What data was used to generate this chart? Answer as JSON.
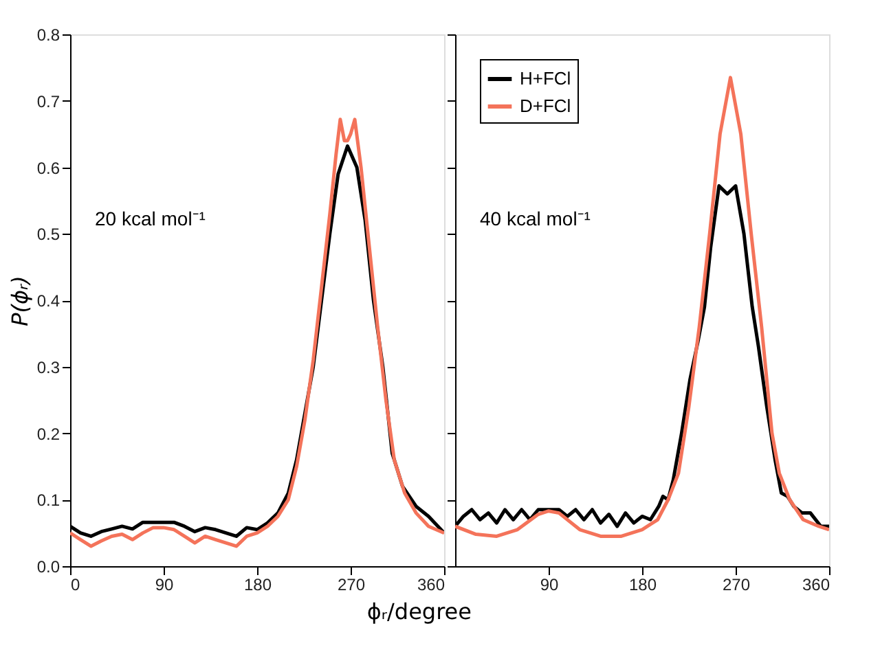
{
  "chart_data": [
    {
      "type": "line",
      "xlabel": "ϕᵣ/degree",
      "ylabel": "P(ϕᵣ)",
      "annotations": [
        "20 kcal mol⁻¹"
      ],
      "xlim": [
        0,
        360
      ],
      "xticks": [
        0,
        90,
        180,
        270,
        360
      ],
      "ylim": [
        0,
        0.8
      ],
      "yticks": [
        {
          "value": 0,
          "label": "0.0"
        },
        0.1,
        0.2,
        0.3,
        0.4,
        0.5,
        0.6,
        0.7,
        0.8
      ],
      "grid": false,
      "legend": false,
      "line_style": "solid",
      "marker": "none",
      "series": [
        {
          "color": "#000000",
          "x": [
            0,
            10,
            20,
            30,
            40,
            50,
            60,
            70,
            80,
            90,
            100,
            110,
            120,
            130,
            140,
            150,
            160,
            170,
            180,
            190,
            200,
            210,
            218,
            226,
            234,
            242,
            250,
            258,
            267,
            276,
            284,
            292,
            301,
            310,
            320,
            333,
            345,
            360
          ],
          "values": [
            0.06,
            0.05,
            0.045,
            0.052,
            0.056,
            0.06,
            0.056,
            0.066,
            0.066,
            0.066,
            0.066,
            0.06,
            0.052,
            0.058,
            0.055,
            0.05,
            0.045,
            0.058,
            0.055,
            0.065,
            0.08,
            0.11,
            0.16,
            0.23,
            0.3,
            0.4,
            0.5,
            0.59,
            0.632,
            0.6,
            0.52,
            0.4,
            0.3,
            0.17,
            0.12,
            0.09,
            0.075,
            0.05
          ]
        },
        {
          "color": "#f4735a",
          "x": [
            0,
            10,
            20,
            30,
            40,
            50,
            60,
            70,
            80,
            90,
            100,
            110,
            120,
            130,
            140,
            150,
            160,
            170,
            180,
            190,
            200,
            210,
            218,
            226,
            234,
            242,
            250,
            256,
            260,
            264,
            267,
            270,
            274,
            280,
            288,
            296,
            304,
            312,
            322,
            333,
            345,
            360
          ],
          "values": [
            0.05,
            0.04,
            0.03,
            0.038,
            0.045,
            0.048,
            0.04,
            0.05,
            0.058,
            0.058,
            0.055,
            0.045,
            0.035,
            0.045,
            0.04,
            0.035,
            0.03,
            0.045,
            0.05,
            0.06,
            0.075,
            0.1,
            0.15,
            0.22,
            0.31,
            0.42,
            0.53,
            0.62,
            0.672,
            0.64,
            0.64,
            0.65,
            0.672,
            0.6,
            0.48,
            0.36,
            0.25,
            0.16,
            0.11,
            0.08,
            0.06,
            0.05
          ]
        }
      ]
    },
    {
      "type": "line",
      "annotations": [
        "40 kcal mol⁻¹"
      ],
      "xlim": [
        0,
        360
      ],
      "xticks": [
        90,
        180,
        270,
        360
      ],
      "ylim": [
        0,
        0.8
      ],
      "yticks": [
        0,
        0.1,
        0.2,
        0.3,
        0.4,
        0.5,
        0.6,
        0.7,
        0.8
      ],
      "tick_labels": "x",
      "grid": false,
      "legend": "top left",
      "line_style": "solid",
      "marker": "none",
      "series": [
        {
          "name": "H+FCl",
          "color": "#000000",
          "x": [
            0,
            8,
            16,
            24,
            32,
            40,
            48,
            56,
            64,
            72,
            80,
            90,
            100,
            108,
            116,
            124,
            132,
            140,
            148,
            156,
            164,
            172,
            180,
            188,
            196,
            200,
            205,
            210,
            218,
            226,
            234,
            240,
            246,
            254,
            262,
            270,
            278,
            286,
            292,
            300,
            308,
            314,
            320,
            326,
            334,
            342,
            352,
            360
          ],
          "values": [
            0.06,
            0.075,
            0.085,
            0.07,
            0.08,
            0.065,
            0.085,
            0.07,
            0.085,
            0.07,
            0.085,
            0.085,
            0.085,
            0.075,
            0.085,
            0.07,
            0.085,
            0.065,
            0.078,
            0.06,
            0.08,
            0.065,
            0.075,
            0.07,
            0.09,
            0.105,
            0.1,
            0.13,
            0.2,
            0.28,
            0.34,
            0.39,
            0.48,
            0.572,
            0.56,
            0.572,
            0.5,
            0.39,
            0.33,
            0.24,
            0.16,
            0.11,
            0.105,
            0.09,
            0.08,
            0.08,
            0.06,
            0.06
          ]
        },
        {
          "name": "D+FCl",
          "color": "#f4735a",
          "x": [
            0,
            20,
            40,
            60,
            80,
            90,
            100,
            120,
            140,
            160,
            180,
            195,
            205,
            215,
            225,
            235,
            245,
            255,
            265,
            275,
            285,
            295,
            305,
            312,
            322,
            335,
            350,
            360
          ],
          "values": [
            0.06,
            0.048,
            0.045,
            0.055,
            0.078,
            0.083,
            0.08,
            0.055,
            0.045,
            0.045,
            0.055,
            0.07,
            0.1,
            0.14,
            0.24,
            0.36,
            0.5,
            0.65,
            0.735,
            0.65,
            0.5,
            0.36,
            0.2,
            0.14,
            0.1,
            0.07,
            0.06,
            0.055
          ]
        }
      ]
    }
  ]
}
